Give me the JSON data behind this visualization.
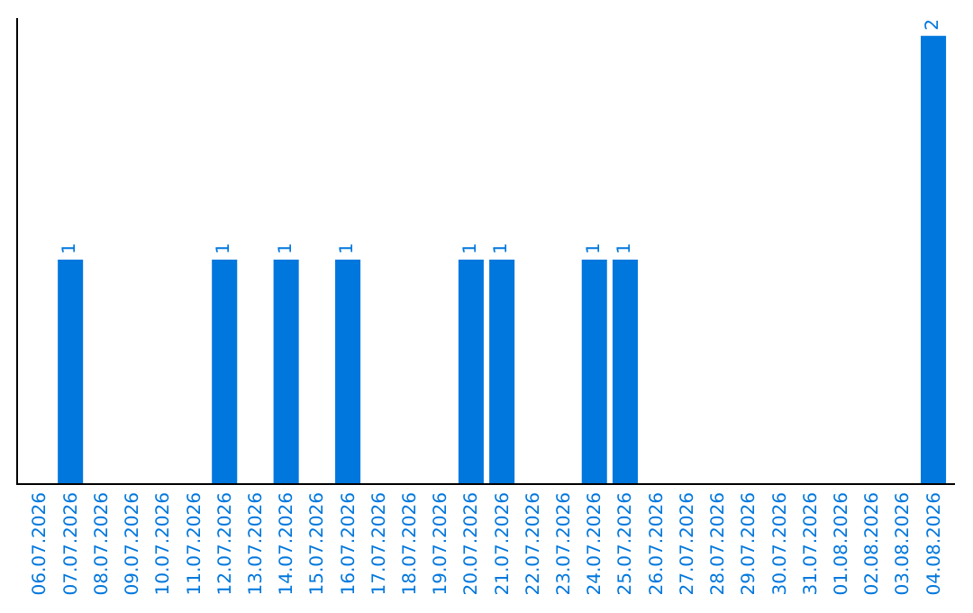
{
  "chart_data": {
    "type": "bar",
    "categories": [
      "06.07.2026",
      "07.07.2026",
      "08.07.2026",
      "09.07.2026",
      "10.07.2026",
      "11.07.2026",
      "12.07.2026",
      "13.07.2026",
      "14.07.2026",
      "15.07.2026",
      "16.07.2026",
      "17.07.2026",
      "18.07.2026",
      "19.07.2026",
      "20.07.2026",
      "21.07.2026",
      "22.07.2026",
      "23.07.2026",
      "24.07.2026",
      "25.07.2026",
      "26.07.2026",
      "27.07.2026",
      "28.07.2026",
      "29.07.2026",
      "30.07.2026",
      "31.07.2026",
      "01.08.2026",
      "02.08.2026",
      "03.08.2026",
      "04.08.2026"
    ],
    "values": [
      0,
      1,
      0,
      0,
      0,
      0,
      1,
      0,
      1,
      0,
      1,
      0,
      0,
      0,
      1,
      1,
      0,
      0,
      1,
      1,
      0,
      0,
      0,
      0,
      0,
      0,
      0,
      0,
      0,
      2
    ],
    "value_labels": [
      null,
      "1",
      null,
      null,
      null,
      null,
      "1",
      null,
      "1",
      null,
      "1",
      null,
      null,
      null,
      "1",
      "1",
      null,
      null,
      "1",
      "1",
      null,
      null,
      null,
      null,
      null,
      null,
      null,
      null,
      null,
      "2"
    ],
    "color": "#0077dd",
    "tick_labels": "x",
    "legend": false
  }
}
